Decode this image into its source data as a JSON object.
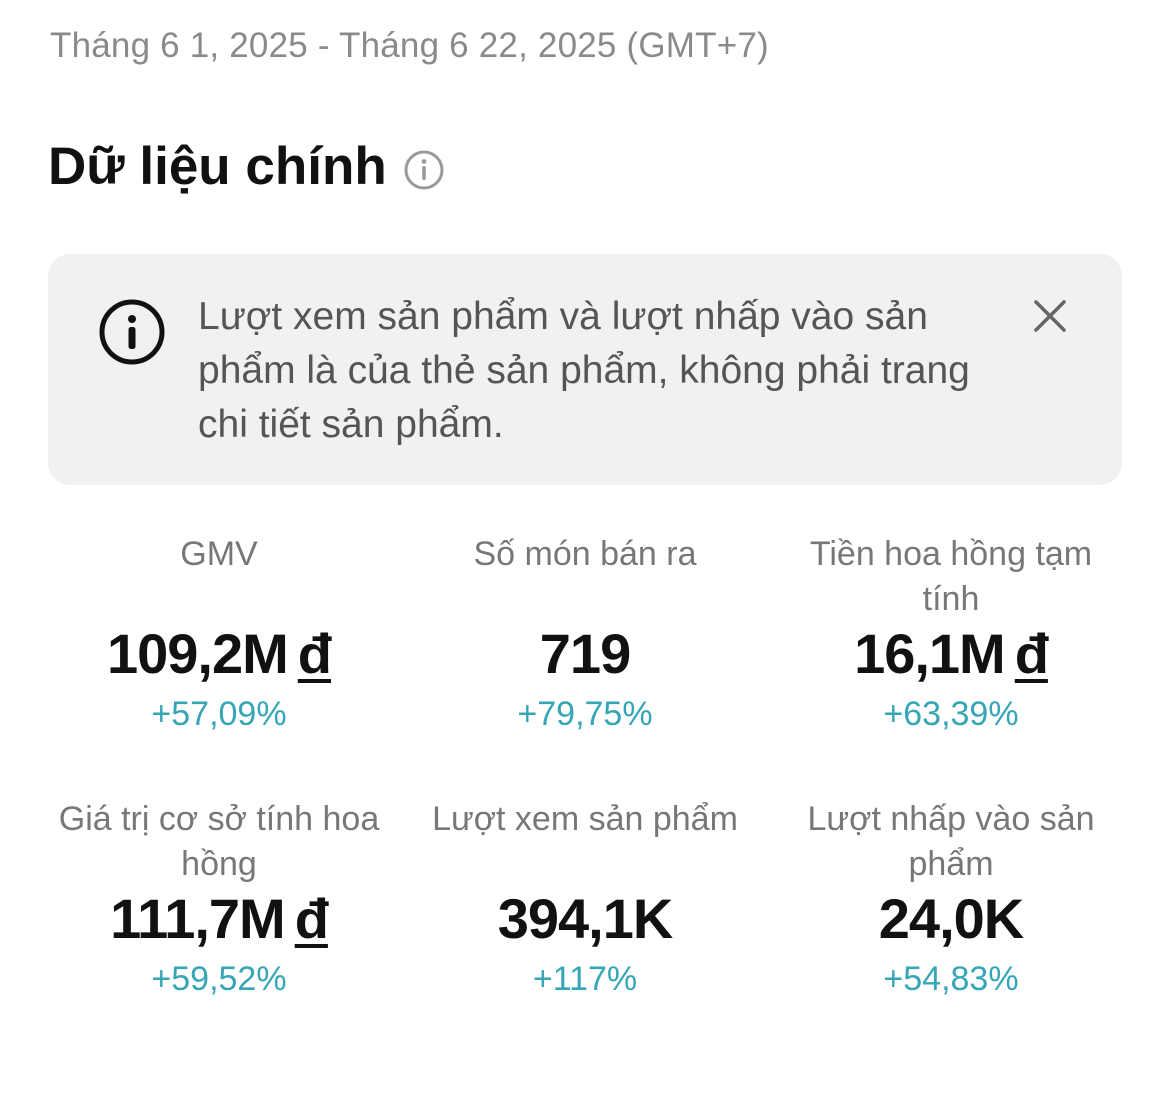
{
  "header": {
    "date_range": "Tháng 6 1, 2025 - Tháng 6 22, 2025 (GMT+7)",
    "section_title": "Dữ liệu chính",
    "section_info_icon": "info-circle-icon"
  },
  "notice": {
    "icon": "info-circle-icon",
    "text": "Lượt xem sản phẩm và lượt nhấp vào sản phẩm là của thẻ sản phẩm, không phải trang chi tiết sản phẩm.",
    "close_icon": "close-icon"
  },
  "metrics": [
    {
      "label": "GMV",
      "value": "109,2M",
      "currency": "đ",
      "change": "+57,09%"
    },
    {
      "label": "Số món bán ra",
      "value": "719",
      "currency": "",
      "change": "+79,75%"
    },
    {
      "label": "Tiền hoa hồng tạm tính",
      "value": "16,1M",
      "currency": "đ",
      "change": "+63,39%"
    },
    {
      "label": "Giá trị cơ sở tính hoa hồng",
      "value": "111,7M",
      "currency": "đ",
      "change": "+59,52%"
    },
    {
      "label": "Lượt xem sản phẩm",
      "value": "394,1K",
      "currency": "",
      "change": "+117%"
    },
    {
      "label": "Lượt nhấp vào sản phẩm",
      "value": "24,0K",
      "currency": "",
      "change": "+54,83%"
    }
  ],
  "colors": {
    "change_positive": "#36a6b7",
    "notice_background": "#f1f1f1",
    "label_text": "#777777"
  }
}
